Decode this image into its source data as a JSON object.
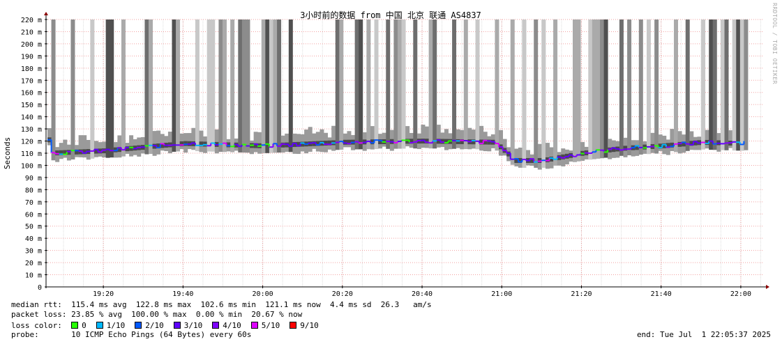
{
  "chart_data": {
    "type": "line",
    "title": "3小时前的数据 from 中国 北京 联通 AS4837",
    "ylabel": "Seconds",
    "xlabel": "",
    "ylim_ms": [
      0,
      220
    ],
    "y_ticks": [
      "0",
      "10 m",
      "20 m",
      "30 m",
      "40 m",
      "50 m",
      "60 m",
      "70 m",
      "80 m",
      "90 m",
      "100 m",
      "110 m",
      "120 m",
      "130 m",
      "140 m",
      "150 m",
      "160 m",
      "170 m",
      "180 m",
      "190 m",
      "200 m",
      "210 m",
      "220 m"
    ],
    "x_ticks": [
      "19:20",
      "19:40",
      "20:00",
      "20:20",
      "20:40",
      "21:00",
      "21:20",
      "21:40",
      "22:00"
    ],
    "x_range": [
      "19:05:37",
      "22:05:37"
    ],
    "grid": true,
    "median_series": {
      "name": "median rtt",
      "x": [
        "19:06",
        "19:20",
        "19:40",
        "20:00",
        "20:20",
        "20:40",
        "20:58",
        "21:03",
        "21:10",
        "21:20",
        "21:30",
        "21:40",
        "21:50",
        "22:00",
        "22:05"
      ],
      "values_ms": [
        110,
        112,
        118,
        116,
        119,
        120,
        119,
        104,
        104,
        110,
        114,
        116,
        119,
        118,
        121
      ]
    },
    "legend": [
      {
        "label": "0",
        "color": "#26ff00"
      },
      {
        "label": "1/10",
        "color": "#00b8ff"
      },
      {
        "label": "2/10",
        "color": "#0059ff"
      },
      {
        "label": "3/10",
        "color": "#5e00ff"
      },
      {
        "label": "4/10",
        "color": "#7e00ff"
      },
      {
        "label": "5/10",
        "color": "#dd00ff"
      },
      {
        "label": "9/10",
        "color": "#ff0000"
      }
    ]
  },
  "stats": {
    "median_line": "median rtt:  115.4 ms avg  122.8 ms max  102.6 ms min  121.1 ms now  4.4 ms sd  26.3   am/s",
    "loss_line": "packet loss: 23.85 % avg  100.00 % max  0.00 % min  20.67 % now",
    "loss_color_label": "loss color:  ",
    "probe_line": "probe:       10 ICMP Echo Pings (64 Bytes) every 60s",
    "end_line": "end: Tue Jul  1 22:05:37 2025"
  },
  "watermark": "RRDTOOL / TOBI OETIKER"
}
